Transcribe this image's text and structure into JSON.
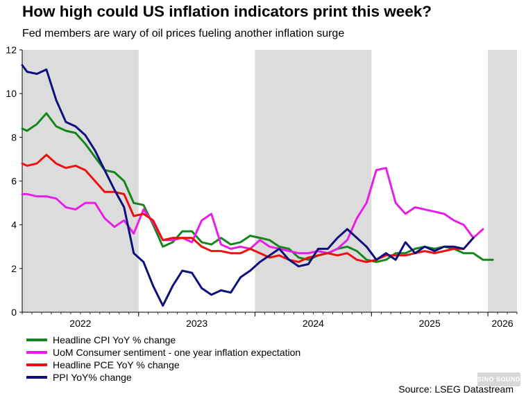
{
  "title": "How high could US inflation indicators print this week?",
  "subtitle": "Fed members are wary of oil prices fueling another inflation surge",
  "source": "Source: LSEG Datastream",
  "watermark": "SINO SOUND",
  "chart_data": {
    "type": "line",
    "x_start": 2022.0,
    "x_end": 2026.25,
    "ylim": [
      0,
      12
    ],
    "yticks": [
      0,
      2,
      4,
      6,
      8,
      10,
      12
    ],
    "year_labels": [
      {
        "label": "2022",
        "center": 2022.5
      },
      {
        "label": "2023",
        "center": 2023.5
      },
      {
        "label": "2024",
        "center": 2024.5
      },
      {
        "label": "2025",
        "center": 2025.5
      },
      {
        "label": "2026",
        "center": 2026.125
      }
    ],
    "year_boundaries": [
      2023.0,
      2024.0,
      2025.0,
      2026.0
    ],
    "shaded_years": [
      [
        2022.0,
        2023.0
      ],
      [
        2024.0,
        2025.0
      ],
      [
        2026.0,
        2026.25
      ]
    ],
    "series": [
      {
        "name": "Headline CPI YoY % change",
        "color": "#13861c",
        "points": [
          [
            2022.0,
            8.4
          ],
          [
            2022.042,
            8.3
          ],
          [
            2022.125,
            8.6
          ],
          [
            2022.208,
            9.1
          ],
          [
            2022.292,
            8.5
          ],
          [
            2022.375,
            8.3
          ],
          [
            2022.458,
            8.2
          ],
          [
            2022.542,
            7.7
          ],
          [
            2022.625,
            7.1
          ],
          [
            2022.708,
            6.5
          ],
          [
            2022.792,
            6.4
          ],
          [
            2022.875,
            6.0
          ],
          [
            2022.958,
            5.0
          ],
          [
            2023.042,
            4.9
          ],
          [
            2023.125,
            4.0
          ],
          [
            2023.208,
            3.0
          ],
          [
            2023.292,
            3.2
          ],
          [
            2023.375,
            3.7
          ],
          [
            2023.458,
            3.7
          ],
          [
            2023.542,
            3.2
          ],
          [
            2023.625,
            3.1
          ],
          [
            2023.708,
            3.4
          ],
          [
            2023.792,
            3.1
          ],
          [
            2023.875,
            3.2
          ],
          [
            2023.958,
            3.5
          ],
          [
            2024.042,
            3.4
          ],
          [
            2024.125,
            3.3
          ],
          [
            2024.208,
            3.0
          ],
          [
            2024.292,
            2.9
          ],
          [
            2024.375,
            2.5
          ],
          [
            2024.458,
            2.4
          ],
          [
            2024.542,
            2.6
          ],
          [
            2024.625,
            2.7
          ],
          [
            2024.708,
            2.9
          ],
          [
            2024.792,
            3.0
          ],
          [
            2024.875,
            2.8
          ],
          [
            2024.958,
            2.4
          ],
          [
            2025.042,
            2.3
          ],
          [
            2025.125,
            2.4
          ],
          [
            2025.208,
            2.7
          ],
          [
            2025.292,
            2.7
          ],
          [
            2025.375,
            2.9
          ],
          [
            2025.458,
            3.0
          ],
          [
            2025.542,
            2.9
          ],
          [
            2025.625,
            3.0
          ],
          [
            2025.708,
            2.9
          ],
          [
            2025.792,
            2.7
          ],
          [
            2025.875,
            2.7
          ],
          [
            2025.958,
            2.4
          ],
          [
            2026.042,
            2.4
          ]
        ]
      },
      {
        "name": "UoM Consumer sentiment - one year inflation expectation",
        "color": "#e81ee8",
        "points": [
          [
            2022.0,
            5.4
          ],
          [
            2022.042,
            5.4
          ],
          [
            2022.125,
            5.3
          ],
          [
            2022.208,
            5.3
          ],
          [
            2022.292,
            5.2
          ],
          [
            2022.375,
            4.8
          ],
          [
            2022.458,
            4.7
          ],
          [
            2022.542,
            5.0
          ],
          [
            2022.625,
            5.0
          ],
          [
            2022.708,
            4.3
          ],
          [
            2022.792,
            3.9
          ],
          [
            2022.875,
            4.2
          ],
          [
            2022.958,
            3.6
          ],
          [
            2023.042,
            4.7
          ],
          [
            2023.125,
            4.1
          ],
          [
            2023.208,
            3.3
          ],
          [
            2023.292,
            3.3
          ],
          [
            2023.375,
            3.4
          ],
          [
            2023.458,
            3.2
          ],
          [
            2023.542,
            4.2
          ],
          [
            2023.625,
            4.5
          ],
          [
            2023.708,
            3.1
          ],
          [
            2023.792,
            2.9
          ],
          [
            2023.875,
            3.0
          ],
          [
            2023.958,
            2.9
          ],
          [
            2024.042,
            3.3
          ],
          [
            2024.125,
            3.0
          ],
          [
            2024.208,
            2.9
          ],
          [
            2024.292,
            2.8
          ],
          [
            2024.375,
            2.7
          ],
          [
            2024.458,
            2.7
          ],
          [
            2024.542,
            2.8
          ],
          [
            2024.625,
            2.7
          ],
          [
            2024.708,
            2.9
          ],
          [
            2024.792,
            3.3
          ],
          [
            2024.875,
            4.3
          ],
          [
            2024.958,
            5.0
          ],
          [
            2025.042,
            6.5
          ],
          [
            2025.125,
            6.6
          ],
          [
            2025.208,
            5.0
          ],
          [
            2025.292,
            4.5
          ],
          [
            2025.375,
            4.8
          ],
          [
            2025.458,
            4.7
          ],
          [
            2025.542,
            4.6
          ],
          [
            2025.625,
            4.5
          ],
          [
            2025.708,
            4.2
          ],
          [
            2025.792,
            4.0
          ],
          [
            2025.875,
            3.4
          ],
          [
            2025.958,
            3.8
          ]
        ]
      },
      {
        "name": "Headline PCE YoY % change",
        "color": "#ee1010",
        "points": [
          [
            2022.0,
            6.8
          ],
          [
            2022.042,
            6.7
          ],
          [
            2022.125,
            6.8
          ],
          [
            2022.208,
            7.2
          ],
          [
            2022.292,
            6.8
          ],
          [
            2022.375,
            6.6
          ],
          [
            2022.458,
            6.7
          ],
          [
            2022.542,
            6.5
          ],
          [
            2022.625,
            6.0
          ],
          [
            2022.708,
            5.5
          ],
          [
            2022.792,
            5.5
          ],
          [
            2022.875,
            5.4
          ],
          [
            2022.958,
            4.4
          ],
          [
            2023.042,
            4.5
          ],
          [
            2023.125,
            4.2
          ],
          [
            2023.208,
            3.3
          ],
          [
            2023.292,
            3.4
          ],
          [
            2023.375,
            3.4
          ],
          [
            2023.458,
            3.4
          ],
          [
            2023.542,
            3.0
          ],
          [
            2023.625,
            2.8
          ],
          [
            2023.708,
            2.8
          ],
          [
            2023.792,
            2.7
          ],
          [
            2023.875,
            2.7
          ],
          [
            2023.958,
            2.9
          ],
          [
            2024.042,
            2.7
          ],
          [
            2024.125,
            2.5
          ],
          [
            2024.208,
            2.6
          ],
          [
            2024.292,
            2.4
          ],
          [
            2024.375,
            2.3
          ],
          [
            2024.458,
            2.5
          ],
          [
            2024.542,
            2.6
          ],
          [
            2024.625,
            2.7
          ],
          [
            2024.708,
            2.6
          ],
          [
            2024.792,
            2.7
          ],
          [
            2024.875,
            2.4
          ],
          [
            2024.958,
            2.3
          ],
          [
            2025.042,
            2.4
          ],
          [
            2025.125,
            2.6
          ],
          [
            2025.208,
            2.6
          ],
          [
            2025.292,
            2.6
          ],
          [
            2025.375,
            2.7
          ],
          [
            2025.458,
            2.8
          ],
          [
            2025.542,
            2.7
          ],
          [
            2025.625,
            2.8
          ],
          [
            2025.708,
            2.9
          ],
          [
            2025.792,
            2.9
          ]
        ]
      },
      {
        "name": "PPI YoY% change",
        "color": "#0e0e7c",
        "points": [
          [
            2022.0,
            11.3
          ],
          [
            2022.042,
            11.0
          ],
          [
            2022.125,
            10.9
          ],
          [
            2022.208,
            11.1
          ],
          [
            2022.292,
            9.7
          ],
          [
            2022.375,
            8.7
          ],
          [
            2022.458,
            8.5
          ],
          [
            2022.542,
            8.1
          ],
          [
            2022.625,
            7.4
          ],
          [
            2022.708,
            6.5
          ],
          [
            2022.792,
            5.6
          ],
          [
            2022.875,
            4.8
          ],
          [
            2022.958,
            2.7
          ],
          [
            2023.042,
            2.3
          ],
          [
            2023.125,
            1.2
          ],
          [
            2023.208,
            0.3
          ],
          [
            2023.292,
            1.2
          ],
          [
            2023.375,
            1.9
          ],
          [
            2023.458,
            1.8
          ],
          [
            2023.542,
            1.1
          ],
          [
            2023.625,
            0.8
          ],
          [
            2023.708,
            1.0
          ],
          [
            2023.792,
            0.9
          ],
          [
            2023.875,
            1.6
          ],
          [
            2023.958,
            1.9
          ],
          [
            2024.042,
            2.3
          ],
          [
            2024.125,
            2.6
          ],
          [
            2024.208,
            2.9
          ],
          [
            2024.292,
            2.4
          ],
          [
            2024.375,
            2.1
          ],
          [
            2024.458,
            2.2
          ],
          [
            2024.542,
            2.9
          ],
          [
            2024.625,
            2.9
          ],
          [
            2024.708,
            3.4
          ],
          [
            2024.792,
            3.8
          ],
          [
            2024.875,
            3.4
          ],
          [
            2024.958,
            3.0
          ],
          [
            2025.042,
            2.4
          ],
          [
            2025.125,
            2.7
          ],
          [
            2025.208,
            2.4
          ],
          [
            2025.292,
            3.2
          ],
          [
            2025.375,
            2.7
          ],
          [
            2025.458,
            3.0
          ],
          [
            2025.542,
            2.8
          ],
          [
            2025.625,
            3.0
          ],
          [
            2025.708,
            3.0
          ],
          [
            2025.792,
            2.9
          ],
          [
            2025.875,
            3.4
          ]
        ]
      }
    ]
  }
}
